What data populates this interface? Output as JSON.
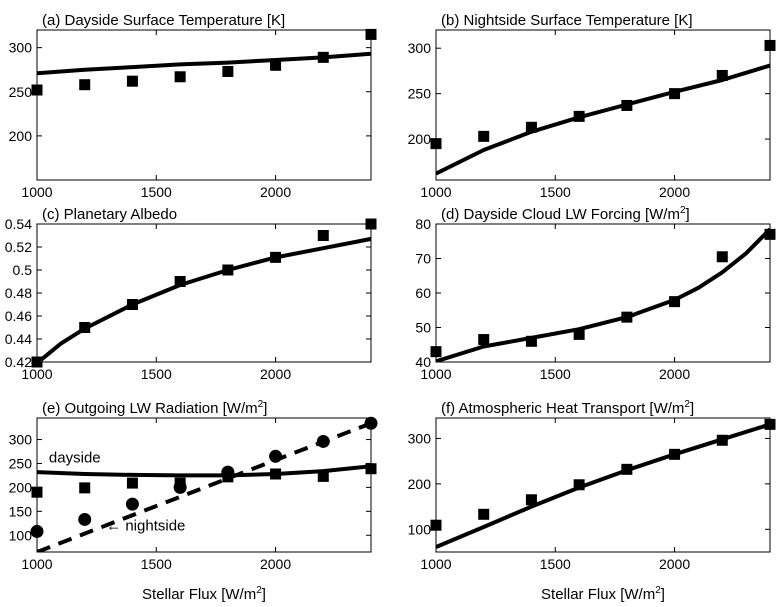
{
  "xlabel": "Stellar Flux [W/m",
  "xlabel_sup": "2",
  "xlabel_end": "]",
  "chart_data": [
    {
      "type": "line",
      "title": "(a) Dayside Surface Temperature [K]",
      "xlim": [
        1000,
        2400
      ],
      "ylim": [
        150,
        320
      ],
      "xticks": [
        1000,
        1500,
        2000
      ],
      "yticks": [
        200,
        250,
        300
      ],
      "ytick_labels": [
        "200",
        "250",
        "300"
      ],
      "series": [
        {
          "marker": "square",
          "x": [
            1000,
            1200,
            1400,
            1600,
            1800,
            2000,
            2200,
            2400
          ],
          "y": [
            252,
            258,
            262,
            267,
            273,
            280,
            289,
            315
          ]
        },
        {
          "marker": "none",
          "x": [
            1000,
            1200,
            1400,
            1600,
            1800,
            2000,
            2200,
            2400
          ],
          "y": [
            271,
            275,
            278,
            281,
            283,
            286,
            289,
            293
          ]
        }
      ]
    },
    {
      "type": "line",
      "title": "(b) Nightside Surface Temperature [K]",
      "xlim": [
        1000,
        2400
      ],
      "ylim": [
        155,
        320
      ],
      "xticks": [
        1000,
        1500,
        2000
      ],
      "yticks": [
        200,
        250,
        300
      ],
      "ytick_labels": [
        "200",
        "250",
        "300"
      ],
      "series": [
        {
          "marker": "square",
          "x": [
            1000,
            1200,
            1400,
            1600,
            1800,
            2000,
            2200,
            2400
          ],
          "y": [
            195,
            203,
            213,
            225,
            237,
            250,
            270,
            303
          ]
        },
        {
          "marker": "none",
          "x": [
            1000,
            1200,
            1400,
            1600,
            1800,
            2000,
            2200,
            2400
          ],
          "y": [
            162,
            188,
            208,
            224,
            238,
            252,
            265,
            281
          ]
        }
      ]
    },
    {
      "type": "line",
      "title": "(c) Planetary Albedo",
      "xlim": [
        1000,
        2400
      ],
      "ylim": [
        0.42,
        0.54
      ],
      "xticks": [
        1000,
        1500,
        2000
      ],
      "yticks": [
        0.42,
        0.44,
        0.46,
        0.48,
        0.5,
        0.52,
        0.54
      ],
      "ytick_labels": [
        "0.42",
        "0.44",
        "0.46",
        "0.48",
        "0.5",
        "0.52",
        "0.54"
      ],
      "series": [
        {
          "marker": "square",
          "x": [
            1000,
            1200,
            1400,
            1600,
            1800,
            2000,
            2200,
            2400
          ],
          "y": [
            0.42,
            0.45,
            0.47,
            0.49,
            0.5,
            0.511,
            0.53,
            0.54
          ]
        },
        {
          "marker": "none",
          "x": [
            1000,
            1100,
            1200,
            1400,
            1600,
            1800,
            2000,
            2200,
            2400
          ],
          "y": [
            0.419,
            0.436,
            0.449,
            0.47,
            0.487,
            0.5,
            0.511,
            0.519,
            0.527
          ]
        }
      ]
    },
    {
      "type": "line",
      "title": "(d) Dayside Cloud LW Forcing [W/m",
      "title_sup": "2",
      "title_end": "]",
      "xlim": [
        1000,
        2400
      ],
      "ylim": [
        40,
        80
      ],
      "xticks": [
        1000,
        1500,
        2000
      ],
      "yticks": [
        40,
        50,
        60,
        70,
        80
      ],
      "ytick_labels": [
        "40",
        "50",
        "60",
        "70",
        "80"
      ],
      "series": [
        {
          "marker": "square",
          "x": [
            1000,
            1200,
            1400,
            1600,
            1800,
            2000,
            2200,
            2400
          ],
          "y": [
            43,
            46.5,
            46,
            48,
            53,
            57.5,
            70.5,
            77
          ]
        },
        {
          "marker": "none",
          "x": [
            1000,
            1200,
            1400,
            1600,
            1800,
            2000,
            2100,
            2200,
            2300,
            2400
          ],
          "y": [
            40.2,
            44.5,
            47,
            49.5,
            53,
            58,
            61.5,
            66,
            71.5,
            78.5
          ]
        }
      ]
    },
    {
      "type": "line",
      "title": "(e) Outgoing LW Radiation [W/m",
      "title_sup": "2",
      "title_end": "]",
      "xlim": [
        1000,
        2400
      ],
      "ylim": [
        65,
        345
      ],
      "xticks": [
        1000,
        1500,
        2000
      ],
      "yticks": [
        100,
        150,
        200,
        250,
        300
      ],
      "ytick_labels": [
        "100",
        "150",
        "200",
        "250",
        "300"
      ],
      "annotations": [
        {
          "text": "dayside",
          "x": 1050,
          "y": 252
        },
        {
          "text": "← nightside",
          "x": 1290,
          "y": 110
        }
      ],
      "series": [
        {
          "marker": "square",
          "x": [
            1000,
            1200,
            1400,
            1600,
            1800,
            2000,
            2200,
            2400
          ],
          "y": [
            190,
            199,
            209,
            209,
            222,
            228,
            223,
            239
          ]
        },
        {
          "marker": "circle",
          "x": [
            1000,
            1200,
            1400,
            1600,
            1800,
            2000,
            2200,
            2400
          ],
          "y": [
            108,
            133,
            165,
            200,
            232,
            265,
            296,
            334
          ]
        },
        {
          "marker": "none",
          "x": [
            1000,
            1200,
            1400,
            1600,
            1800,
            2000,
            2200,
            2400
          ],
          "y": [
            232,
            228,
            226,
            225,
            225,
            228,
            234,
            244
          ]
        },
        {
          "marker": "none",
          "dashed": true,
          "x": [
            1000,
            2400
          ],
          "y": [
            65,
            334
          ]
        }
      ]
    },
    {
      "type": "line",
      "title": "(f) Atmospheric Heat Transport [W/m",
      "title_sup": "2",
      "title_end": "]",
      "xlim": [
        1000,
        2400
      ],
      "ylim": [
        50,
        345
      ],
      "xticks": [
        1000,
        1500,
        2000
      ],
      "yticks": [
        100,
        200,
        300
      ],
      "ytick_labels": [
        "100",
        "200",
        "300"
      ],
      "series": [
        {
          "marker": "square",
          "x": [
            1000,
            1200,
            1400,
            1600,
            1800,
            2000,
            2200,
            2400
          ],
          "y": [
            109,
            133,
            165,
            198,
            232,
            265,
            296,
            331
          ]
        },
        {
          "marker": "none",
          "x": [
            1000,
            1200,
            1400,
            1600,
            1800,
            2000,
            2200,
            2400
          ],
          "y": [
            61,
            105,
            150,
            192,
            230,
            265,
            298,
            331
          ]
        }
      ]
    }
  ]
}
